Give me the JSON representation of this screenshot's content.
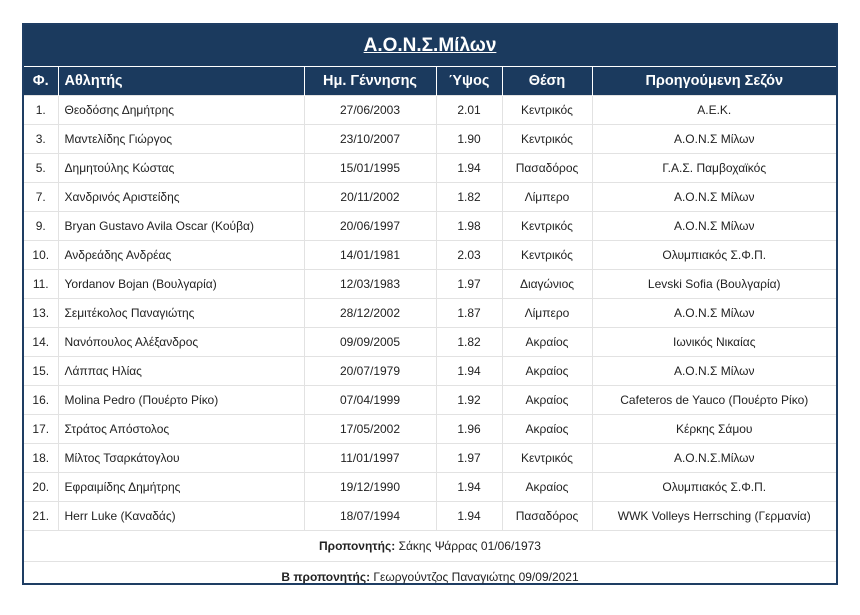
{
  "title": "Α.Ο.Ν.Σ.Μίλων",
  "headers": {
    "num": "Φ.",
    "name": "Αθλητής",
    "dob": "Ημ. Γέννησης",
    "height": "Ύψος",
    "position": "Θέση",
    "previous": "Προηγούμενη Σεζόν"
  },
  "rows": [
    {
      "num": "1.",
      "name": "Θεοδόσης Δημήτρης",
      "dob": "27/06/2003",
      "height": "2.01",
      "position": "Κεντρικός",
      "previous": "Α.Ε.Κ."
    },
    {
      "num": "3.",
      "name": "Μαντελίδης Γιώργος",
      "dob": "23/10/2007",
      "height": "1.90",
      "position": "Κεντρικός",
      "previous": "Α.Ο.Ν.Σ Μίλων"
    },
    {
      "num": "5.",
      "name": "Δημητούλης Κώστας",
      "dob": "15/01/1995",
      "height": "1.94",
      "position": "Πασαδόρος",
      "previous": "Γ.Α.Σ. Παμβοχαϊκός"
    },
    {
      "num": "7.",
      "name": "Χανδρινός Αριστείδης",
      "dob": "20/11/2002",
      "height": "1.82",
      "position": "Λίμπερο",
      "previous": "Α.Ο.Ν.Σ Μίλων"
    },
    {
      "num": "9.",
      "name": "Bryan Gustavo Avila Oscar (Κούβα)",
      "dob": "20/06/1997",
      "height": "1.98",
      "position": "Κεντρικός",
      "previous": "Α.Ο.Ν.Σ Μίλων"
    },
    {
      "num": "10.",
      "name": "Ανδρεάδης Ανδρέας",
      "dob": "14/01/1981",
      "height": "2.03",
      "position": "Κεντρικός",
      "previous": "Ολυμπιακός Σ.Φ.Π."
    },
    {
      "num": "11.",
      "name": "Yordanov Bojan (Βουλγαρία)",
      "dob": "12/03/1983",
      "height": "1.97",
      "position": "Διαγώνιος",
      "previous": "Levski Sofia (Βουλγαρία)"
    },
    {
      "num": "13.",
      "name": "Σεμιτέκολος Παναγιώτης",
      "dob": "28/12/2002",
      "height": "1.87",
      "position": "Λίμπερο",
      "previous": "Α.Ο.Ν.Σ Μίλων"
    },
    {
      "num": "14.",
      "name": "Νανόπουλος Αλέξανδρος",
      "dob": "09/09/2005",
      "height": "1.82",
      "position": "Ακραίος",
      "previous": "Ιωνικός Νικαίας"
    },
    {
      "num": "15.",
      "name": "Λάππας Ηλίας",
      "dob": "20/07/1979",
      "height": "1.94",
      "position": "Ακραίος",
      "previous": "Α.Ο.Ν.Σ Μίλων"
    },
    {
      "num": "16.",
      "name": "Molina Pedro (Πουέρτο Ρίκο)",
      "dob": "07/04/1999",
      "height": "1.92",
      "position": "Ακραίος",
      "previous": "Cafeteros de Yauco (Πουέρτο Ρίκο)"
    },
    {
      "num": "17.",
      "name": "Στράτος Απόστολος",
      "dob": "17/05/2002",
      "height": "1.96",
      "position": "Ακραίος",
      "previous": "Κέρκης Σάμου"
    },
    {
      "num": "18.",
      "name": "Μίλτος Τσαρκάτογλου",
      "dob": "11/01/1997",
      "height": "1.97",
      "position": "Κεντρικός",
      "previous": "Α.Ο.Ν.Σ.Μίλων"
    },
    {
      "num": "20.",
      "name": "Εφραιμίδης Δημήτρης",
      "dob": "19/12/1990",
      "height": "1.94",
      "position": "Ακραίος",
      "previous": "Ολυμπιακός Σ.Φ.Π."
    },
    {
      "num": "21.",
      "name": "Herr Luke (Καναδάς)",
      "dob": "18/07/1994",
      "height": "1.94",
      "position": "Πασαδόρος",
      "previous": "WWK Volleys Herrsching (Γερμανία)"
    }
  ],
  "coach": {
    "label": "Προπονητής:",
    "value": "Σάκης Ψάρρας 01/06/1973"
  },
  "assistant_coach": {
    "label": "Β προπονητής:",
    "value": "Γεωργούντζος Παναγιώτης 09/09/2021"
  },
  "colors": {
    "header_bg": "#1b3a5e",
    "header_text": "#ffffff",
    "border": "#1e3d63"
  }
}
